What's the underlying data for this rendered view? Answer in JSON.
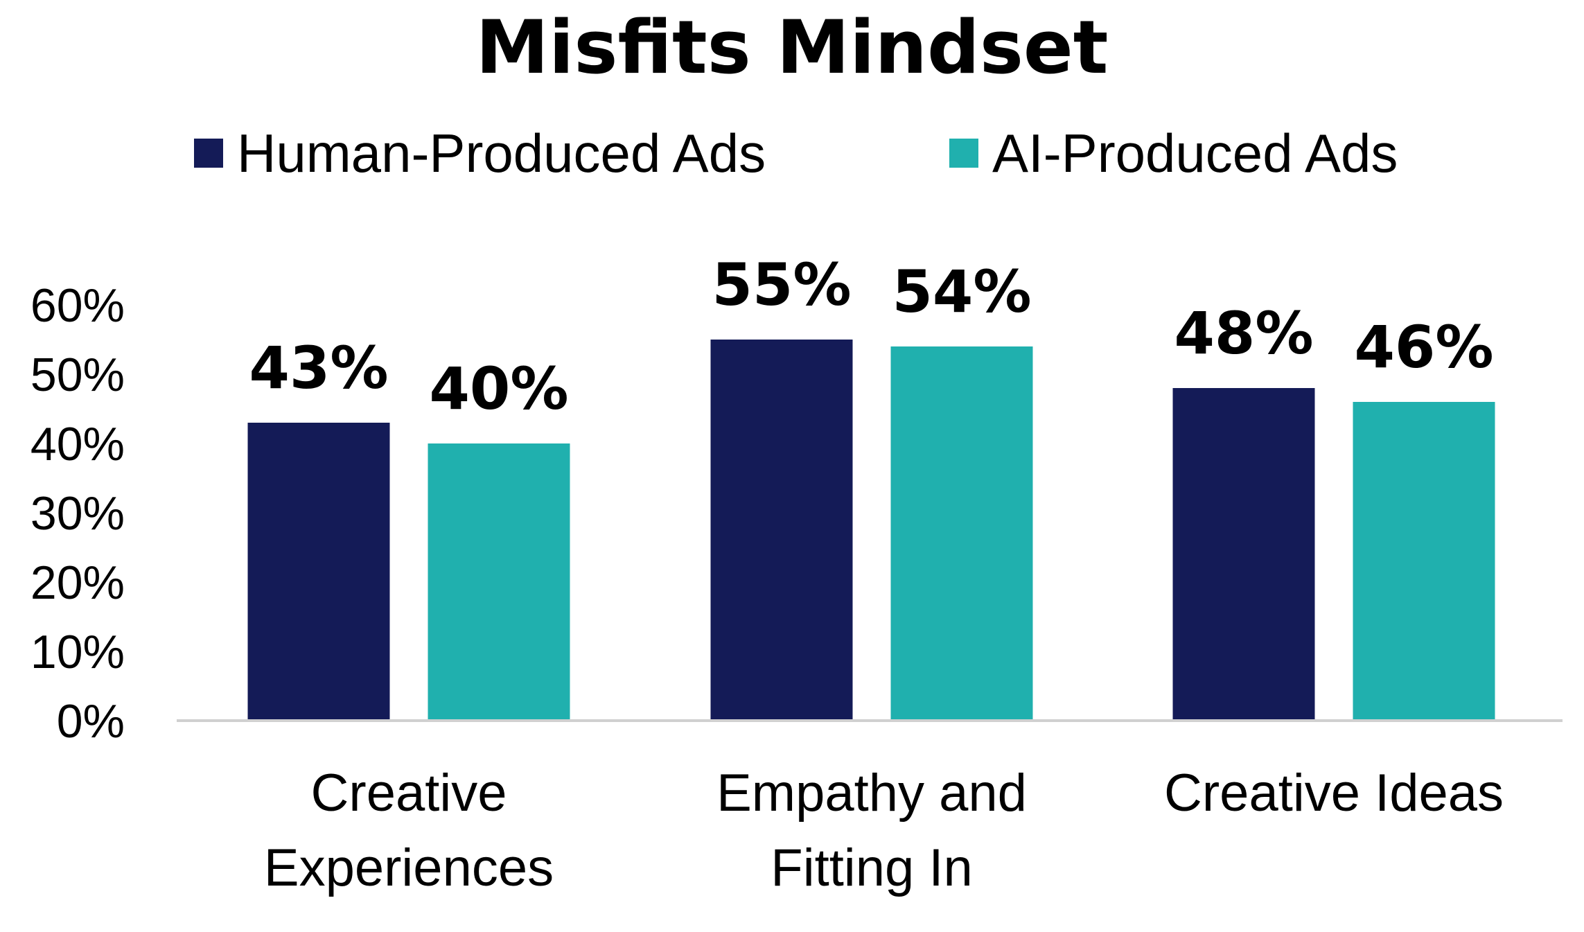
{
  "chart_data": {
    "type": "bar",
    "title": "Misfits Mindset",
    "categories": [
      [
        "Creative",
        "Experiences"
      ],
      [
        "Empathy and",
        "Fitting In"
      ],
      [
        "Creative Ideas"
      ]
    ],
    "series": [
      {
        "name": "Human-Produced Ads",
        "color": "#141b57",
        "values": [
          43,
          55,
          48
        ],
        "labels": [
          "43%",
          "55%",
          "48%"
        ]
      },
      {
        "name": "AI-Produced Ads",
        "color": "#20b0ae",
        "values": [
          40,
          54,
          46
        ],
        "labels": [
          "40%",
          "54%",
          "46%"
        ]
      }
    ],
    "ylim": [
      0,
      60
    ],
    "yticks": [
      0,
      10,
      20,
      30,
      40,
      50,
      60
    ],
    "ytick_labels": [
      "0%",
      "10%",
      "20%",
      "30%",
      "40%",
      "50%",
      "60%"
    ],
    "xlabel": "",
    "ylabel": "",
    "grid": false,
    "legend": "top-center",
    "axis_color": "#d0d0d0"
  }
}
